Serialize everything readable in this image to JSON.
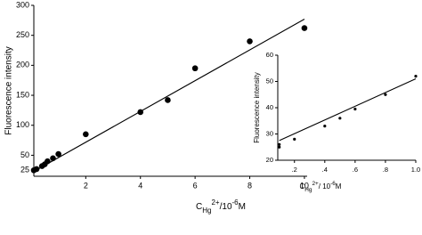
{
  "chart_data": [
    {
      "type": "scatter",
      "y_label": "Fluorescence intensity",
      "x_label": [
        {
          "text": "C"
        },
        {
          "text": "Hg",
          "shift": "sub"
        },
        {
          "text": "2+",
          "shift": "super"
        },
        {
          "text": "/10"
        },
        {
          "text": "-6",
          "shift": "super"
        },
        {
          "text": "M"
        }
      ],
      "x": [
        0.1,
        0.2,
        0.4,
        0.5,
        0.6,
        0.8,
        1.0,
        2,
        4,
        5,
        6,
        8,
        10
      ],
      "values": [
        25,
        27,
        32,
        35,
        40,
        45,
        52,
        85,
        122,
        142,
        195,
        240,
        262
      ],
      "color": "#000000",
      "fit": {
        "x": [
          0.1,
          10
        ],
        "y": [
          23,
          277
        ]
      },
      "xlim": [
        0.1,
        10.1
      ],
      "xticks": [
        2,
        4,
        6,
        8,
        10
      ],
      "ylim": [
        15,
        300
      ],
      "yticks": [
        25,
        50,
        100,
        150,
        200,
        250,
        300
      ]
    },
    {
      "type": "scatter",
      "y_label": "Fluorescence intensity",
      "x_label": [
        {
          "text": "C"
        },
        {
          "text": "Hg",
          "shift": "sub"
        },
        {
          "text": "2+",
          "shift": "super"
        },
        {
          "text": "/ 10"
        },
        {
          "text": "-6",
          "shift": "super"
        },
        {
          "text": "M"
        }
      ],
      "x": [
        0.1,
        0.1,
        0.2,
        0.4,
        0.5,
        0.6,
        0.8,
        1.0
      ],
      "values": [
        25,
        26,
        28,
        33,
        36,
        39.5,
        45,
        52
      ],
      "color": "#000000",
      "fit": {
        "x": [
          0.1,
          1.0
        ],
        "y": [
          27.5,
          51
        ]
      },
      "xlim": [
        0.09,
        1.0
      ],
      "xticks": [
        {
          "value": 0.2,
          "label": ".2"
        },
        {
          "value": 0.4,
          "label": ".4"
        },
        {
          "value": 0.6,
          "label": ".6"
        },
        {
          "value": 0.8,
          "label": ".8"
        },
        {
          "value": 1.0,
          "label": "1.0"
        }
      ],
      "ylim": [
        20,
        60
      ],
      "yticks": [
        20,
        30,
        40,
        50,
        60
      ]
    }
  ]
}
